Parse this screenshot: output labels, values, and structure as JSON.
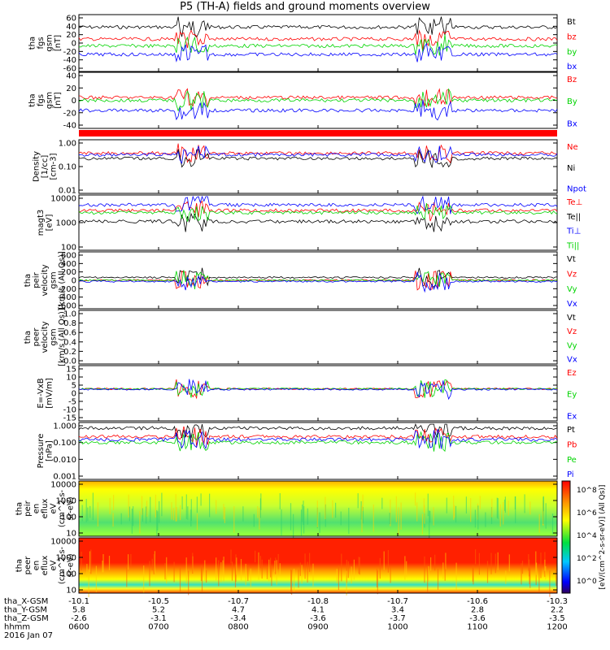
{
  "title": "P5 (TH-A) fields and ground moments overview",
  "colors": {
    "black": "#000000",
    "red": "#ff0000",
    "green": "#00d400",
    "blue": "#0000ff",
    "grid": "#000000"
  },
  "chart_data": [
    {
      "type": "line",
      "id": "fgs-gsm",
      "ylabel": [
        "tha",
        "fgs",
        "gsm",
        "[nT]"
      ],
      "ytick_labels": [
        "60",
        "40",
        "20",
        "0",
        "-20",
        "-40",
        "-60"
      ],
      "ylim": [
        -60,
        60
      ],
      "legend": [
        {
          "name": "Bt",
          "color": "#000000"
        },
        {
          "name": "bz",
          "color": "#ff0000"
        },
        {
          "name": "by",
          "color": "#00d400"
        },
        {
          "name": "bx",
          "color": "#0000ff"
        }
      ]
    },
    {
      "type": "line",
      "id": "fgs-gsm-2",
      "ylabel": [
        "tha",
        "fgs",
        "gsm",
        "[nT]"
      ],
      "ytick_labels": [
        "40",
        "20",
        "0",
        "-20",
        "-40"
      ],
      "ylim": [
        -50,
        40
      ],
      "legend": [
        {
          "name": "Bz",
          "color": "#ff0000"
        },
        {
          "name": "By",
          "color": "#00d400"
        },
        {
          "name": "Bx",
          "color": "#0000ff"
        }
      ]
    },
    {
      "type": "line",
      "id": "density",
      "log": true,
      "ylabel": [
        "Density",
        "[1/cc]",
        "[cm-3]"
      ],
      "ytick_labels": [
        "1.00",
        "0.10",
        "0.01"
      ],
      "ylim": [
        0.01,
        1.0
      ],
      "legend": [
        {
          "name": "Ne",
          "color": "#ff0000"
        },
        {
          "name": "Ni",
          "color": "#000000"
        },
        {
          "name": "Npot",
          "color": "#0000ff"
        }
      ]
    },
    {
      "type": "line",
      "id": "temperature",
      "log": true,
      "ylabel": [
        "magt3",
        "[eV]"
      ],
      "ytick_labels": [
        "10000",
        "1000",
        "100"
      ],
      "ylim": [
        100,
        10000
      ],
      "legend": [
        {
          "name": "Te⊥",
          "color": "#ff0000"
        },
        {
          "name": "Te||",
          "color": "#000000"
        },
        {
          "name": "Ti⊥",
          "color": "#0000ff"
        },
        {
          "name": "Ti||",
          "color": "#00d400"
        }
      ]
    },
    {
      "type": "line",
      "id": "peir-velocity",
      "ylabel": [
        "tha",
        "peir",
        "velocity",
        "gsm",
        "[km/s (All Qs)]"
      ],
      "ytick_labels": [
        "600",
        "400",
        "200",
        "0",
        "-200",
        "-400",
        "-600"
      ],
      "ylim": [
        -600,
        600
      ],
      "legend": [
        {
          "name": "Vt",
          "color": "#000000"
        },
        {
          "name": "Vz",
          "color": "#ff0000"
        },
        {
          "name": "Vy",
          "color": "#00d400"
        },
        {
          "name": "Vx",
          "color": "#0000ff"
        }
      ]
    },
    {
      "type": "line",
      "id": "peer-velocity",
      "ylabel": [
        "tha",
        "peer",
        "velocity",
        "gsm",
        "[km/s (All Qs)]"
      ],
      "ytick_labels": [
        "1.0",
        "0.8",
        "0.6",
        "0.4",
        "0.2",
        "0.0"
      ],
      "ylim": [
        0,
        1
      ],
      "legend": [
        {
          "name": "Vt",
          "color": "#000000"
        },
        {
          "name": "Vz",
          "color": "#ff0000"
        },
        {
          "name": "Vy",
          "color": "#00d400"
        },
        {
          "name": "Vx",
          "color": "#0000ff"
        }
      ]
    },
    {
      "type": "line",
      "id": "efield",
      "ylabel": [
        "E=-VxB",
        "[mV/m]"
      ],
      "ytick_labels": [
        "15",
        "10",
        "5",
        "0",
        "-5",
        "-10",
        "-15"
      ],
      "ylim": [
        -15,
        15
      ],
      "legend": [
        {
          "name": "Ez",
          "color": "#ff0000"
        },
        {
          "name": "Ey",
          "color": "#00d400"
        },
        {
          "name": "Ex",
          "color": "#0000ff"
        }
      ]
    },
    {
      "type": "line",
      "id": "pressure",
      "log": true,
      "ylabel": [
        "Pressure",
        "[nPa]"
      ],
      "ytick_labels": [
        "1.000",
        "0.100",
        "0.010",
        "0.001"
      ],
      "ylim": [
        0.001,
        1
      ],
      "legend": [
        {
          "name": "Pt",
          "color": "#000000"
        },
        {
          "name": "Pb",
          "color": "#ff0000"
        },
        {
          "name": "Pe",
          "color": "#00d400"
        },
        {
          "name": "Pi",
          "color": "#0000ff"
        }
      ]
    },
    {
      "type": "heatmap",
      "id": "peir-eflux",
      "log": true,
      "ylabel": [
        "tha",
        "peir",
        "en",
        "eflux",
        "eV",
        "(cm^2-s-",
        "sr-eV)"
      ],
      "ytick_labels": [
        "10000",
        "1000",
        "100",
        "10"
      ]
    },
    {
      "type": "heatmap",
      "id": "peer-eflux",
      "log": true,
      "ylabel": [
        "tha",
        "peer",
        "en",
        "eflux",
        "eV",
        "(cm^2-s-",
        "sr-eV)"
      ],
      "ytick_labels": [
        "10000",
        "1000",
        "100",
        "10"
      ]
    }
  ],
  "colorbar": {
    "label": "[eV/(cm^2-s-sr-eV)] (All Qs)]",
    "tick_labels": [
      "10^8",
      "10^6",
      "10^4",
      "10^2",
      "10^0"
    ]
  },
  "x_axis": {
    "row_labels": [
      "tha_X-GSM",
      "tha_Y-GSM",
      "tha_Z-GSM",
      "hhmm",
      "2016 Jan 07"
    ],
    "columns": [
      [
        "-10.1",
        "5.8",
        "-2.6",
        "0600"
      ],
      [
        "-10.5",
        "5.2",
        "-3.1",
        "0700"
      ],
      [
        "-10.7",
        "4.7",
        "-3.4",
        "0800"
      ],
      [
        "-10.8",
        "4.1",
        "-3.6",
        "0900"
      ],
      [
        "-10.7",
        "3.4",
        "-3.7",
        "1000"
      ],
      [
        "-10.6",
        "2.8",
        "-3.6",
        "1100"
      ],
      [
        "-10.3",
        "2.2",
        "-3.5",
        "1200"
      ]
    ]
  }
}
